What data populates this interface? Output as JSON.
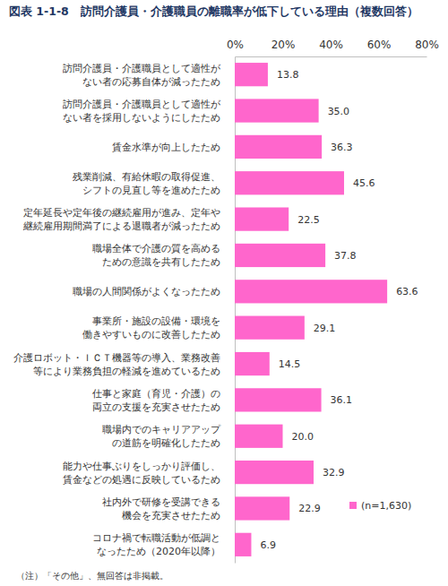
{
  "chart_data": {
    "type": "bar",
    "title": "図表 1-1-8　訪問介護員・介護職員の離職率が低下している理由（複数回答）",
    "orientation": "horizontal",
    "categories": [
      "訪問介護員・介護職員として適性が\nない者の応募自体が減ったため",
      "訪問介護員・介護職員として適性が\nない者を採用しないようにしたため",
      "賃金水準が向上したため",
      "残業削減、有給休暇の取得促進、\nシフトの見直し等を進めたため",
      "定年延長や定年後の継続雇用が進み、定年や\n継続雇用期間満了による退職者が減ったため",
      "職場全体で介護の質を高める\nための意識を共有したため",
      "職場の人間関係がよくなったため",
      "事業所・施設の設備・環境を\n働きやすいものに改善したため",
      "介護ロボット・ＩＣＴ機器等の導入、業務改善\n等により業務負担の軽減を進めているため",
      "仕事と家庭（育児・介護）の\n両立の支援を充実させたため",
      "職場内でのキャリアアップ\nの道筋を明確化したため",
      "能力や仕事ぶりをしっかり評価し、\n賃金などの処遇に反映しているため",
      "社内外で研修を受講できる\n機会を充実させたため",
      "コロナ禍で転職活動が低調と\nなったため（2020年以降）"
    ],
    "series": [
      {
        "name": "(n=1,630)",
        "color": "#ff66cc",
        "values": [
          13.8,
          35.0,
          36.3,
          45.6,
          22.5,
          37.8,
          63.6,
          29.1,
          14.5,
          36.1,
          20.0,
          32.9,
          22.9,
          6.9
        ],
        "value_labels": [
          "13.8",
          "35.0",
          "36.3",
          "45.6",
          "22.5",
          "37.8",
          "63.6",
          "29.1",
          "14.5",
          "36.1",
          "20.0",
          "32.9",
          "22.9",
          "6.9"
        ]
      }
    ],
    "xlim": [
      0,
      80
    ],
    "xticks": [
      {
        "value": 0,
        "label": "0%"
      },
      {
        "value": 20,
        "label": "20%"
      },
      {
        "value": 40,
        "label": "40%"
      },
      {
        "value": 60,
        "label": "60%"
      },
      {
        "value": 80,
        "label": "80%"
      }
    ],
    "grid": false,
    "data_labels": true,
    "legend": "lower right",
    "note": "（注）「その他」、無回答は非掲載。"
  }
}
